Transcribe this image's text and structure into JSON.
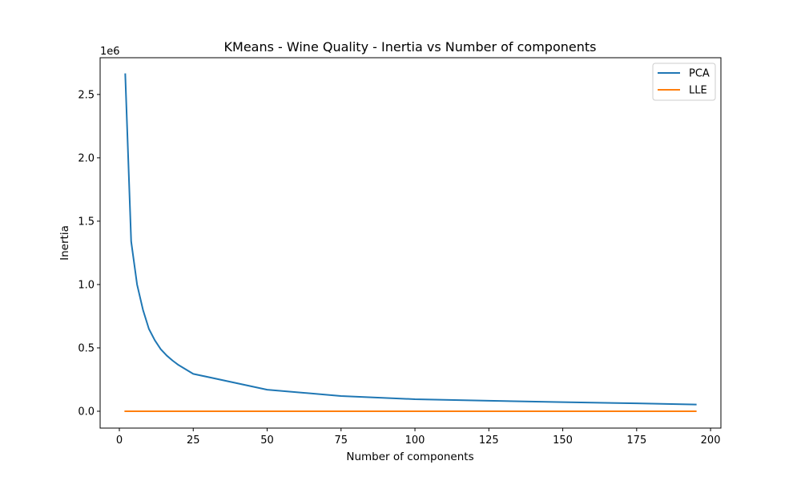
{
  "chart_data": {
    "type": "line",
    "title": "KMeans - Wine Quality - Inertia vs Number of components",
    "xlabel": "Number of components",
    "ylabel": "Inertia",
    "y_offset_label": "1e6",
    "xlim": [
      -6.5,
      203.5
    ],
    "ylim": [
      -0.133,
      2.79
    ],
    "x_ticks": [
      0,
      25,
      50,
      75,
      100,
      125,
      150,
      175,
      200
    ],
    "y_ticks": [
      0.0,
      0.5,
      1.0,
      1.5,
      2.0,
      2.5
    ],
    "y_tick_labels": [
      "0.0",
      "0.5",
      "1.0",
      "1.5",
      "2.0",
      "2.5"
    ],
    "grid": false,
    "legend_position": "top-right",
    "series": [
      {
        "name": "PCA",
        "color": "#1f77b4",
        "x": [
          2,
          4,
          6,
          8,
          10,
          12,
          14,
          16,
          18,
          20,
          25,
          50,
          75,
          100,
          125,
          150,
          175,
          195
        ],
        "y": [
          2.66,
          1.34,
          1.0,
          0.8,
          0.65,
          0.56,
          0.49,
          0.44,
          0.4,
          0.365,
          0.295,
          0.17,
          0.12,
          0.095,
          0.083,
          0.072,
          0.062,
          0.053
        ]
      },
      {
        "name": "LLE",
        "color": "#ff7f0e",
        "x": [
          2,
          195
        ],
        "y": [
          0.0,
          0.0
        ]
      }
    ]
  }
}
